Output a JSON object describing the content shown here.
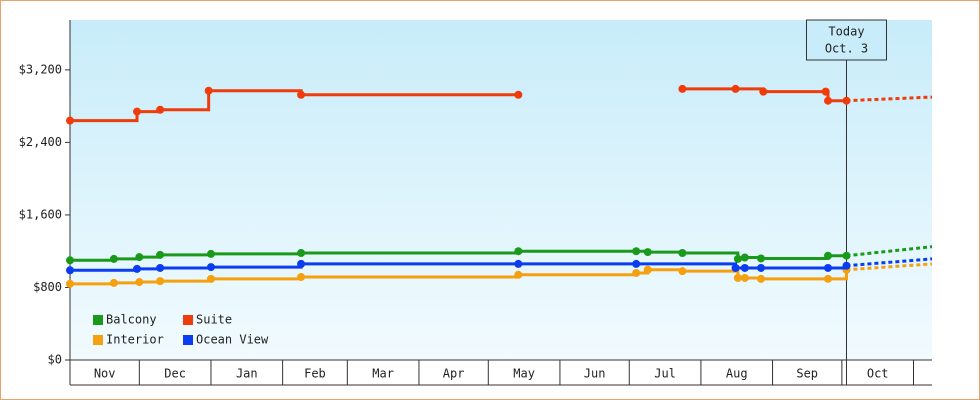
{
  "chart_data": {
    "type": "step-line",
    "ylim": [
      0,
      3750
    ],
    "yticks": [
      {
        "value": 0,
        "label": "$0"
      },
      {
        "value": 800,
        "label": "$800"
      },
      {
        "value": 1600,
        "label": "$1,600"
      },
      {
        "value": 2400,
        "label": "$2,400"
      },
      {
        "value": 3200,
        "label": "$3,200"
      }
    ],
    "xlim": [
      0,
      373
    ],
    "xticks": [
      0,
      30,
      61,
      92,
      120,
      151,
      181,
      212,
      242,
      273,
      304,
      334,
      365
    ],
    "categories": [
      "Nov",
      "Dec",
      "Jan",
      "Feb",
      "Mar",
      "Apr",
      "May",
      "Jun",
      "Jul",
      "Aug",
      "Sep",
      "Oct"
    ],
    "today": {
      "x": 336,
      "label": "Today",
      "date": "Oct. 3"
    },
    "series": [
      {
        "name": "Balcony",
        "color": "#1a9a1a",
        "x": [
          0,
          19,
          30,
          39,
          61,
          100,
          194,
          245,
          250,
          265,
          289,
          292,
          299,
          328,
          336,
          373
        ],
        "values": [
          1100,
          1115,
          1135,
          1160,
          1170,
          1180,
          1200,
          1200,
          1190,
          1180,
          1115,
          1130,
          1120,
          1150,
          1150,
          1250
        ]
      },
      {
        "name": "Suite",
        "color": "#f03c0a",
        "x": [
          0,
          29,
          39,
          60,
          100,
          194,
          230,
          265,
          288,
          300,
          327,
          328,
          336,
          373
        ],
        "values": [
          2640,
          2740,
          2760,
          2970,
          2925,
          2925,
          null,
          2990,
          2990,
          2960,
          2960,
          2860,
          2860,
          2900
        ]
      },
      {
        "name": "Interior",
        "color": "#f5a00f",
        "x": [
          0,
          19,
          30,
          39,
          61,
          100,
          194,
          245,
          250,
          265,
          289,
          292,
          299,
          328,
          336,
          373
        ],
        "values": [
          840,
          850,
          860,
          870,
          895,
          915,
          940,
          960,
          995,
          980,
          905,
          905,
          895,
          895,
          995,
          1060
        ]
      },
      {
        "name": "Ocean View",
        "color": "#0a3cf0",
        "x": [
          0,
          29,
          39,
          61,
          100,
          194,
          245,
          288,
          292,
          299,
          328,
          336,
          373
        ],
        "values": [
          990,
          1005,
          1015,
          1025,
          1060,
          1060,
          1060,
          1015,
          1015,
          1015,
          1015,
          1040,
          1115
        ]
      }
    ]
  }
}
